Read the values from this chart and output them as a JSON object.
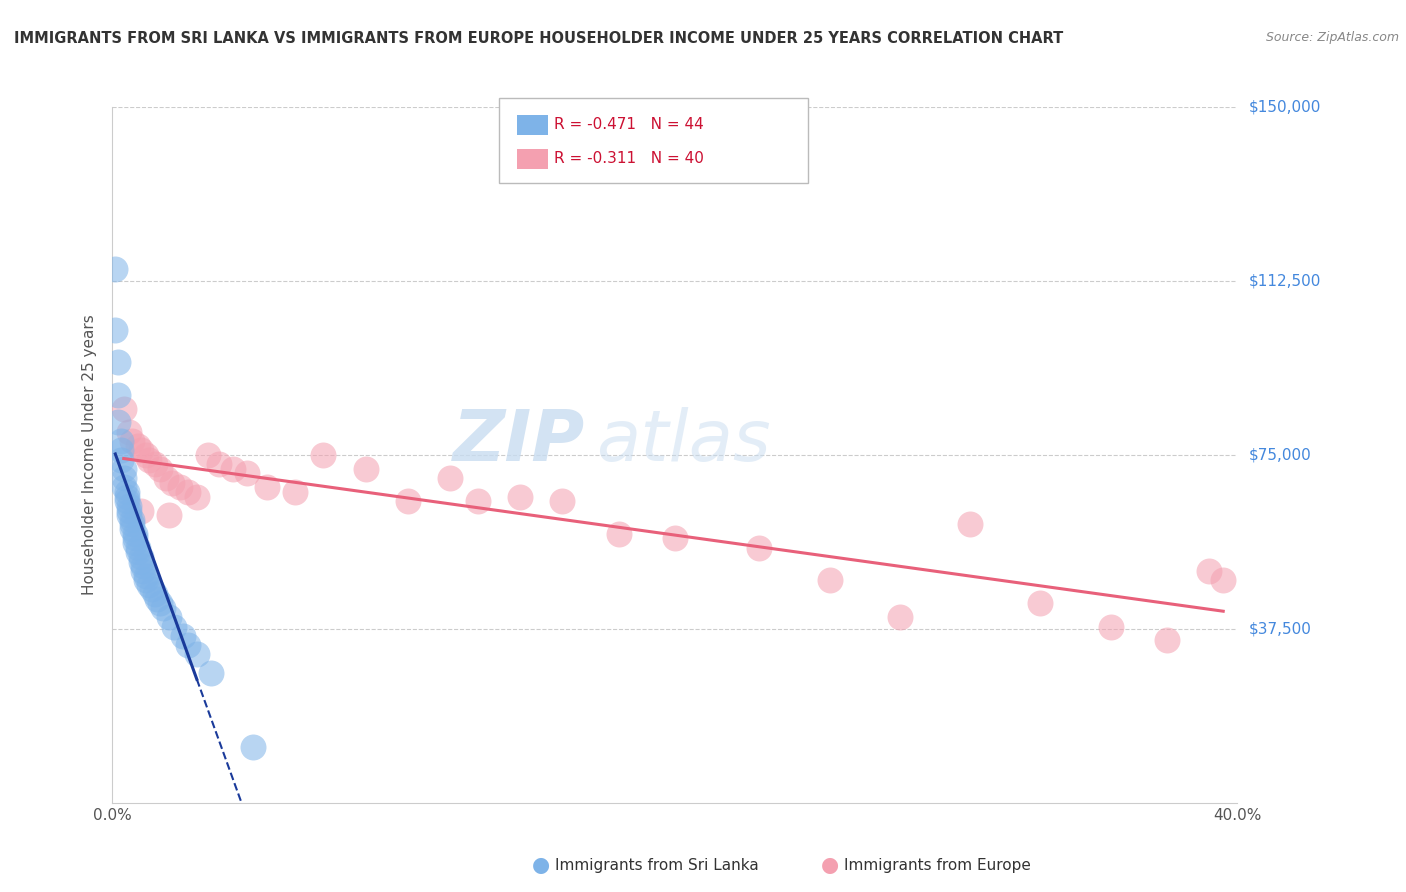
{
  "title": "IMMIGRANTS FROM SRI LANKA VS IMMIGRANTS FROM EUROPE HOUSEHOLDER INCOME UNDER 25 YEARS CORRELATION CHART",
  "source": "Source: ZipAtlas.com",
  "ylabel": "Householder Income Under 25 years",
  "xlim": [
    0.0,
    0.4
  ],
  "ylim": [
    0,
    150000
  ],
  "yticks": [
    0,
    37500,
    75000,
    112500,
    150000
  ],
  "ytick_labels": [
    "",
    "$37,500",
    "$75,000",
    "$112,500",
    "$150,000"
  ],
  "xticks": [
    0.0,
    0.05,
    0.1,
    0.15,
    0.2,
    0.25,
    0.3,
    0.35,
    0.4
  ],
  "color_blue": "#7EB3E8",
  "color_pink": "#F4A0B0",
  "color_line_blue": "#1A3A9A",
  "color_line_pink": "#E8607A",
  "background_color": "#FFFFFF",
  "grid_color": "#CCCCCC",
  "title_color": "#333333",
  "axis_label_color": "#555555",
  "ytick_color": "#4488DD",
  "watermark_color": "#C8DCF0",
  "sri_lanka_x": [
    0.001,
    0.001,
    0.002,
    0.002,
    0.002,
    0.003,
    0.003,
    0.003,
    0.004,
    0.004,
    0.004,
    0.005,
    0.005,
    0.005,
    0.006,
    0.006,
    0.006,
    0.007,
    0.007,
    0.007,
    0.008,
    0.008,
    0.008,
    0.009,
    0.009,
    0.01,
    0.01,
    0.011,
    0.011,
    0.012,
    0.012,
    0.013,
    0.014,
    0.015,
    0.016,
    0.017,
    0.018,
    0.02,
    0.022,
    0.025,
    0.027,
    0.03,
    0.035,
    0.05
  ],
  "sri_lanka_y": [
    115000,
    102000,
    95000,
    88000,
    82000,
    78000,
    76000,
    74000,
    72000,
    70000,
    68000,
    67000,
    66000,
    65000,
    64000,
    63000,
    62000,
    61000,
    60000,
    59000,
    58000,
    57000,
    56000,
    55000,
    54000,
    53000,
    52000,
    51000,
    50000,
    49000,
    48000,
    47000,
    46000,
    45000,
    44000,
    43000,
    42000,
    40000,
    38000,
    36000,
    34000,
    32000,
    28000,
    12000
  ],
  "europe_x": [
    0.004,
    0.006,
    0.007,
    0.009,
    0.01,
    0.012,
    0.013,
    0.015,
    0.017,
    0.019,
    0.021,
    0.024,
    0.027,
    0.03,
    0.034,
    0.038,
    0.043,
    0.048,
    0.055,
    0.065,
    0.075,
    0.09,
    0.105,
    0.12,
    0.13,
    0.145,
    0.16,
    0.18,
    0.2,
    0.23,
    0.255,
    0.28,
    0.305,
    0.33,
    0.355,
    0.375,
    0.39,
    0.395,
    0.01,
    0.02
  ],
  "europe_y": [
    85000,
    80000,
    78000,
    77000,
    76000,
    75000,
    74000,
    73000,
    72000,
    70000,
    69000,
    68000,
    67000,
    66000,
    75000,
    73000,
    72000,
    71000,
    68000,
    67000,
    75000,
    72000,
    65000,
    70000,
    65000,
    66000,
    65000,
    58000,
    57000,
    55000,
    48000,
    40000,
    60000,
    43000,
    38000,
    35000,
    50000,
    48000,
    63000,
    62000
  ]
}
